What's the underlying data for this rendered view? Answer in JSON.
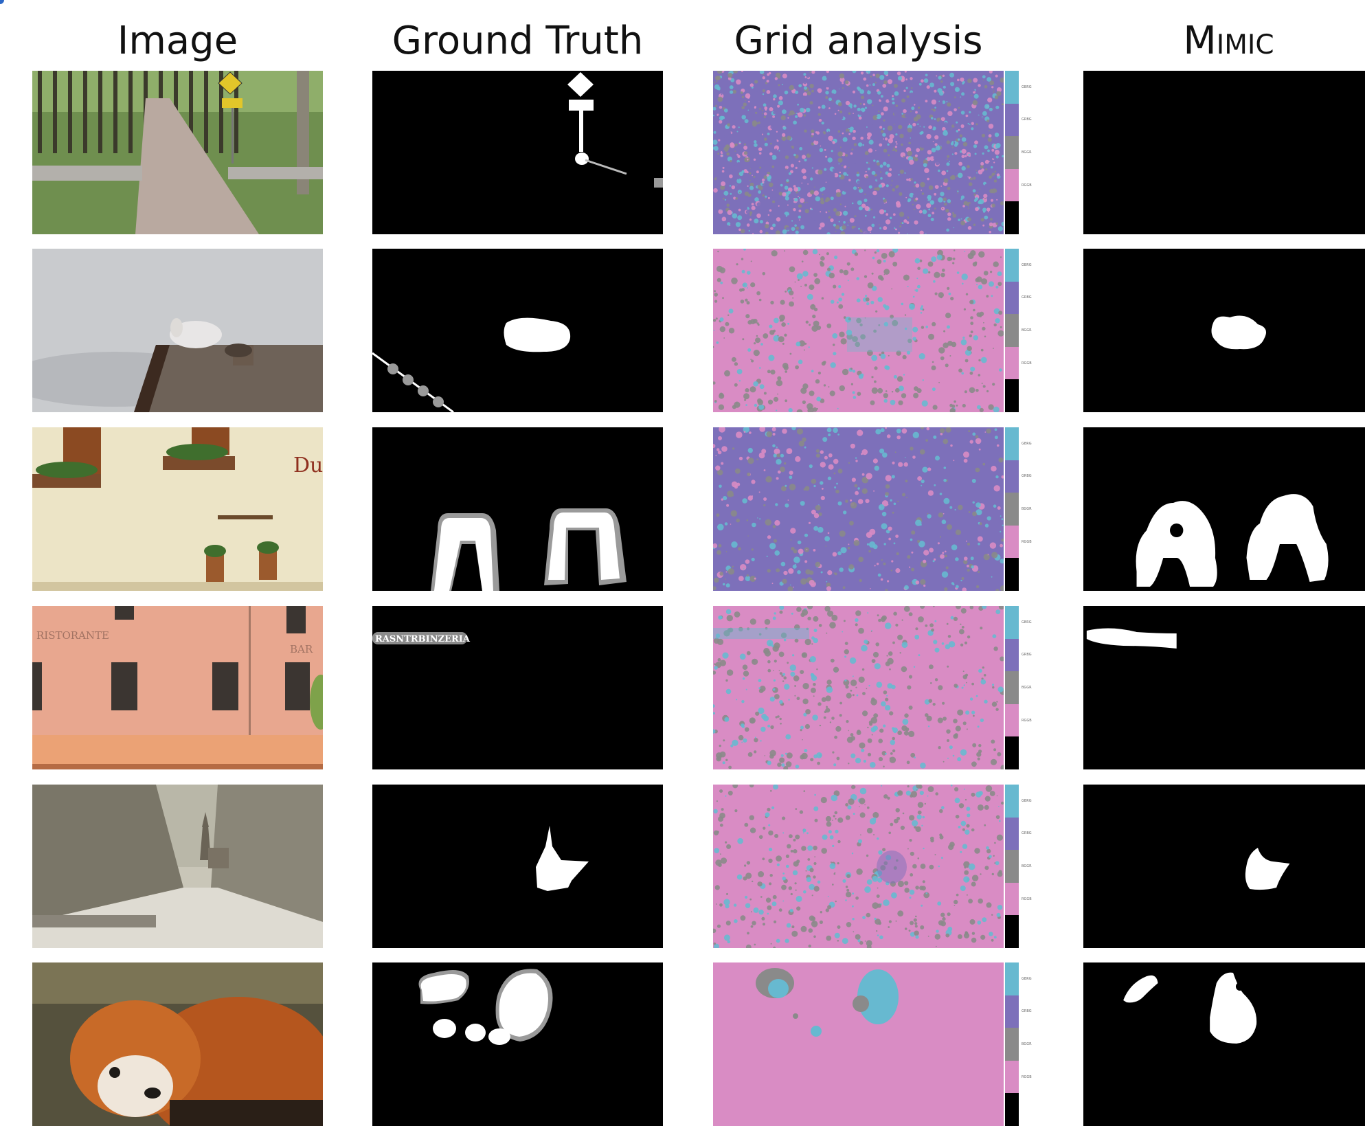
{
  "headers": {
    "image": "Image",
    "ground_truth": "Ground Truth",
    "grid_analysis": "Grid analysis",
    "mimic": "Mimic"
  },
  "legend": {
    "colors": [
      "#67b9d0",
      "#7d70ba",
      "#8a8a8a",
      "#d98cc4",
      "#000000"
    ],
    "labels": [
      "GBRG",
      "GRBG",
      "BGGR",
      "RGGB",
      ""
    ]
  },
  "rows": [
    {
      "scene": "park path with yellow bicycle sign"
    },
    {
      "scene": "mountain goat on a roof under grey sky"
    },
    {
      "scene": "cream wall with flower boxes and hanging pots"
    },
    {
      "scene": "pink restaurant facade with RISTORANTE and BAR lettering"
    },
    {
      "scene": "snowy tree-lined avenue with church tower"
    },
    {
      "scene": "red panda close-up"
    }
  ],
  "colors": {
    "mask_fg": "#ffffff",
    "mask_bg": "#000000",
    "mask_edge": "#8c8c8c",
    "grid_pink": "#d98cc4",
    "grid_purple": "#7d70ba",
    "grid_cyan": "#67b9d0",
    "grid_gray": "#8a8a8a"
  }
}
